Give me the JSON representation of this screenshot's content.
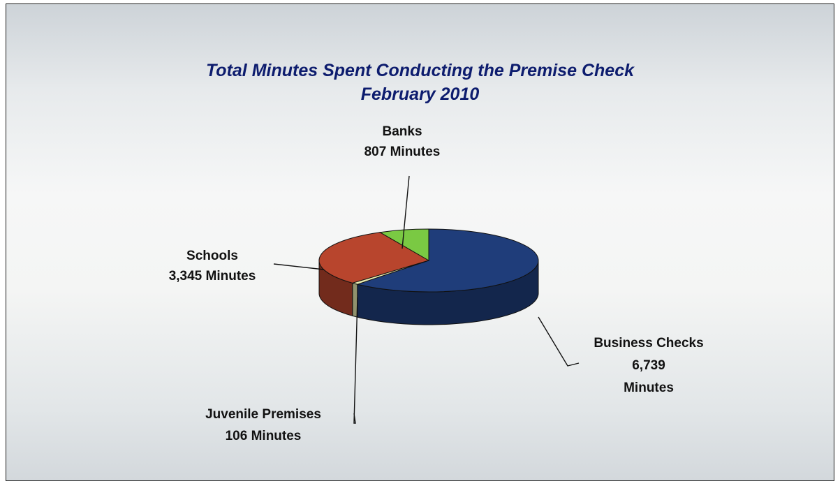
{
  "chart_data": {
    "type": "pie",
    "title": "Total Minutes Spent Conducting the Premise Check",
    "subtitle": "February 2010",
    "unit": "Minutes",
    "slices": [
      {
        "id": "business",
        "name": "Business Checks",
        "value": 6739,
        "value_label": "6,739",
        "unit_label": "Minutes",
        "color": "#1f3d7a"
      },
      {
        "id": "juvenile",
        "name": "Juvenile Premises",
        "value": 106,
        "value_label": "106 Minutes",
        "color": "#e9ecb0"
      },
      {
        "id": "schools",
        "name": "Schools",
        "value": 3345,
        "value_label": "3,345 Minutes",
        "color": "#b8452d"
      },
      {
        "id": "banks",
        "name": "Banks",
        "value": 807,
        "value_label": "807 Minutes",
        "color": "#7ac943"
      }
    ],
    "style": "3d-pie",
    "legend": "none"
  }
}
